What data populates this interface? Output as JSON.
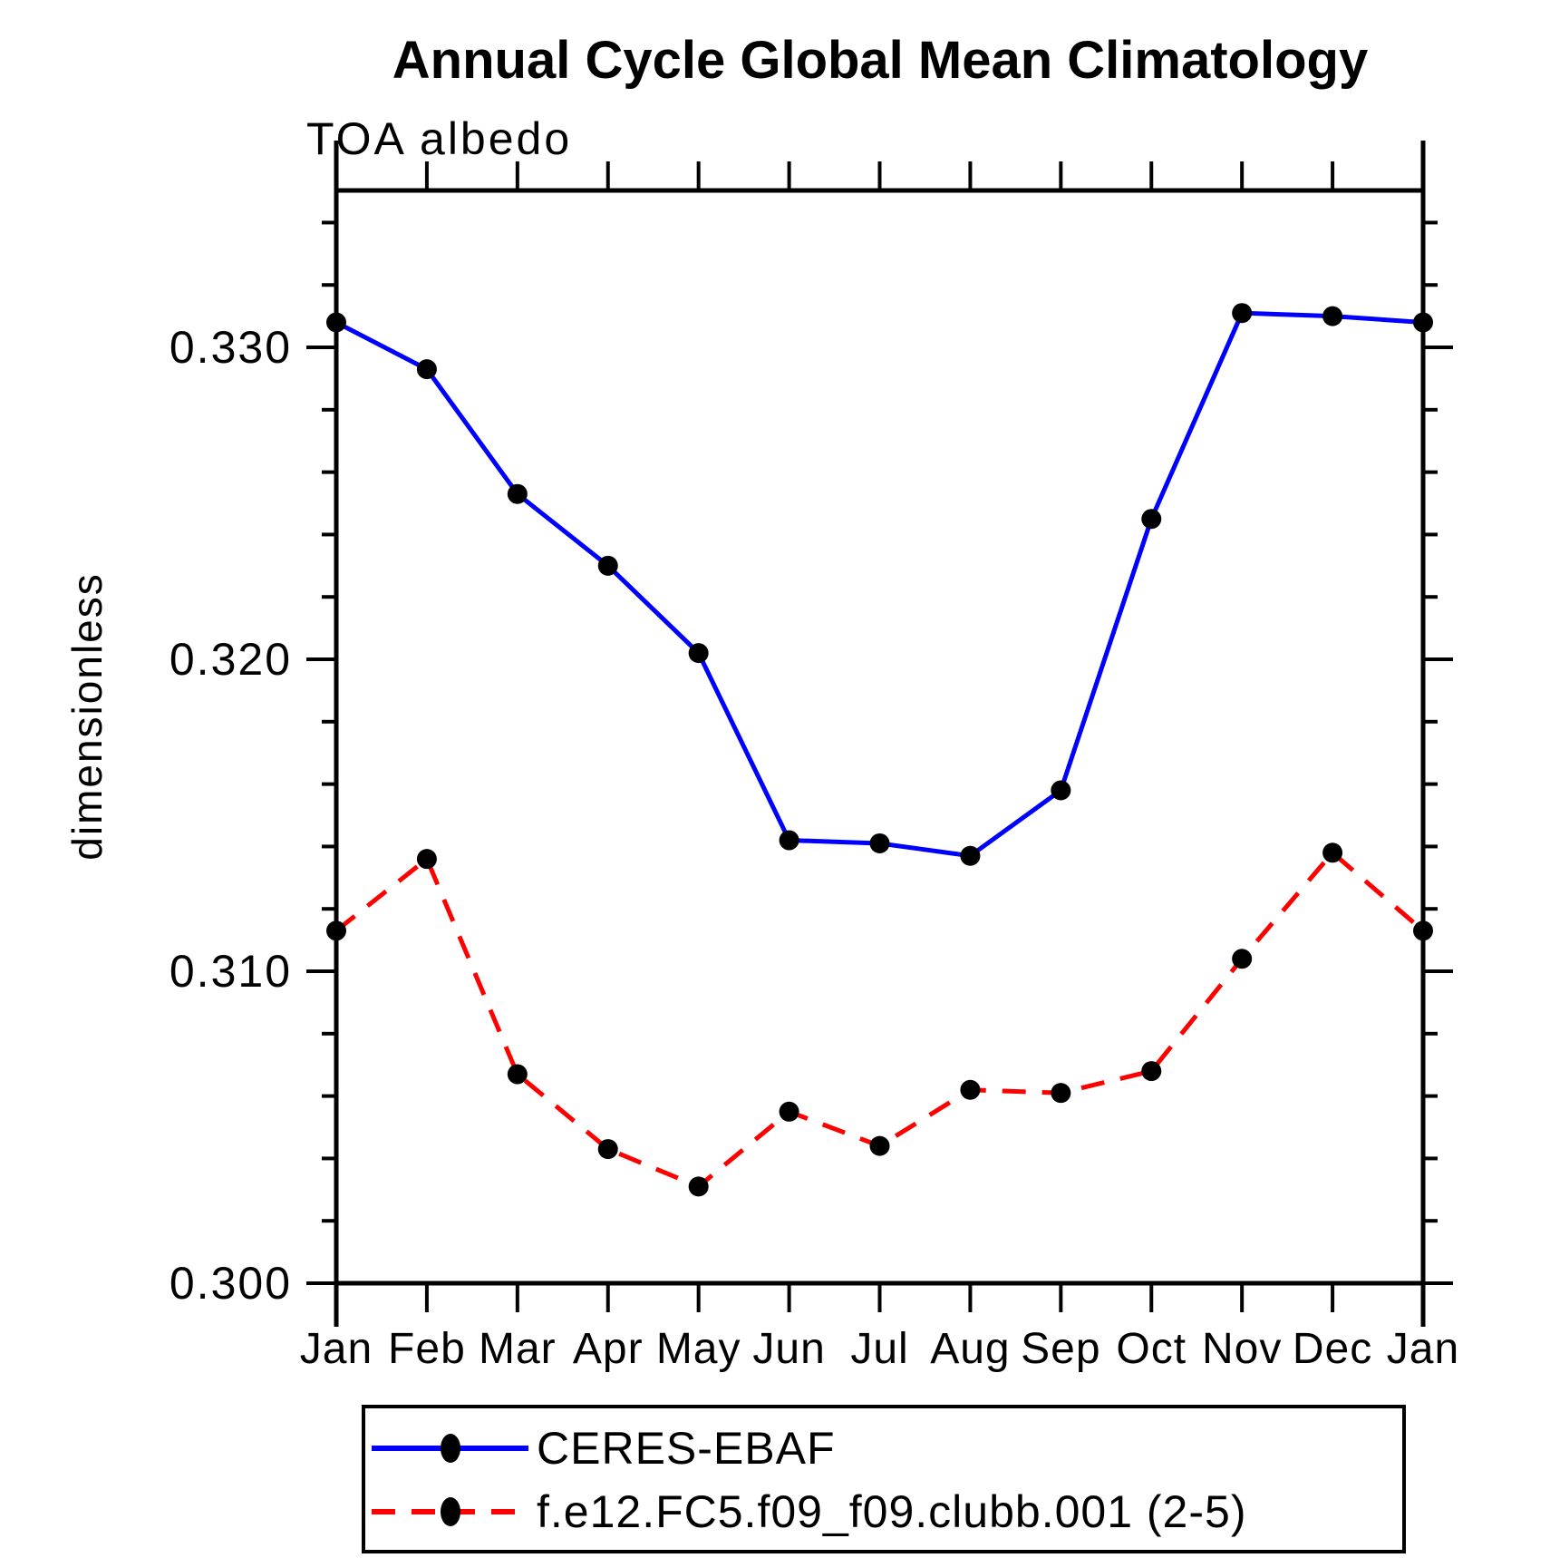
{
  "page": {
    "background": "#ffffff"
  },
  "chart_data": {
    "type": "line",
    "title": "Annual Cycle Global Mean Climatology",
    "subtitle": "TOA albedo",
    "xlabel": "",
    "ylabel": "dimensionless",
    "categories": [
      "Jan",
      "Feb",
      "Mar",
      "Apr",
      "May",
      "Jun",
      "Jul",
      "Aug",
      "Sep",
      "Oct",
      "Nov",
      "Dec",
      "Jan"
    ],
    "y_ticks": [
      0.3,
      0.31,
      0.32,
      0.33
    ],
    "y_tick_labels": [
      "0.300",
      "0.310",
      "0.320",
      "0.330"
    ],
    "y_minor_step": 0.002,
    "ylim": [
      0.3,
      0.33503
    ],
    "grid": false,
    "legend_position": "bottom",
    "axis_color": "#000000",
    "marker_color": "#000000",
    "series": [
      {
        "name": "CERES-EBAF",
        "color": "#0000ff",
        "style": "solid",
        "marker": "circle",
        "values": [
          0.3308,
          0.3293,
          0.3253,
          0.323,
          0.3202,
          0.3142,
          0.3141,
          0.3137,
          0.3158,
          0.3245,
          0.3311,
          0.331,
          0.3308
        ]
      },
      {
        "name": "f.e12.FC5.f09_f09.clubb.001 (2-5)",
        "color": "#ff0000",
        "style": "dashed",
        "marker": "circle",
        "values": [
          0.3113,
          0.3136,
          0.3067,
          0.3043,
          0.3031,
          0.3055,
          0.3044,
          0.3062,
          0.3061,
          0.3068,
          0.3104,
          0.3138,
          0.3113
        ]
      }
    ]
  }
}
